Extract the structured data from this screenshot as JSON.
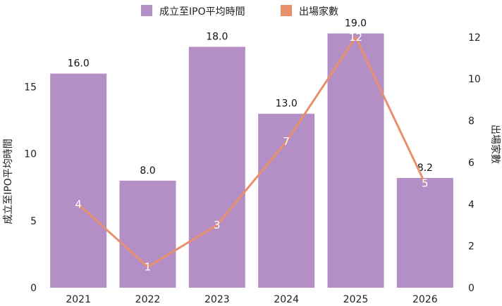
{
  "chart_data": {
    "type": "bar",
    "categories": [
      "2021",
      "2022",
      "2023",
      "2024",
      "2025",
      "2026"
    ],
    "series": [
      {
        "name": "成立至IPO平均時間",
        "kind": "bar",
        "axis": "left",
        "color": "#b48fc6",
        "values": [
          16.0,
          8.0,
          18.0,
          13.0,
          19.0,
          8.2
        ],
        "labels": [
          "16.0",
          "8.0",
          "18.0",
          "13.0",
          "19.0",
          "8.2"
        ]
      },
      {
        "name": "出場家數",
        "kind": "line",
        "axis": "right",
        "color": "#e8906c",
        "values": [
          4,
          1,
          3,
          7,
          12,
          5
        ],
        "labels": [
          "4",
          "1",
          "3",
          "7",
          "12",
          "5"
        ]
      }
    ],
    "ylabel": "成立至IPO平均時間",
    "y2label": "出場家數",
    "ylim": [
      0,
      19.5
    ],
    "y2lim": [
      0,
      12.5
    ],
    "yticks": [
      0,
      5,
      10,
      15
    ],
    "ytick_labels": [
      "0",
      "5",
      "10",
      "15"
    ],
    "y2ticks": [
      0,
      2,
      4,
      6,
      8,
      10,
      12
    ],
    "y2tick_labels": [
      "0",
      "2",
      "4",
      "6",
      "8",
      "10",
      "12"
    ],
    "grid": false,
    "legend": "top-center"
  }
}
